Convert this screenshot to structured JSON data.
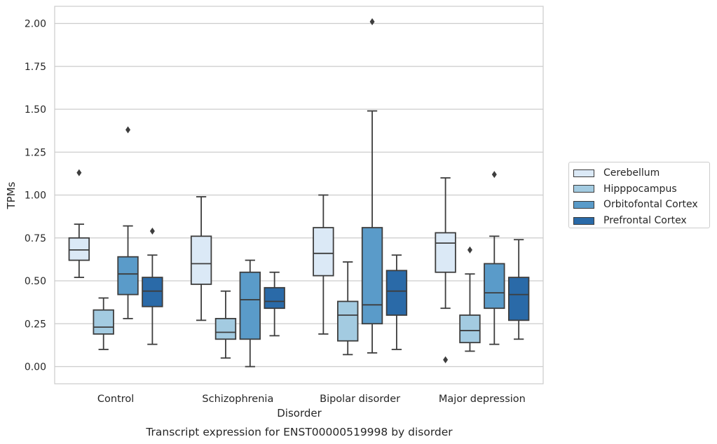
{
  "chart_data": {
    "type": "box",
    "title": "",
    "caption": "Transcript expression for ENST00000519998 by disorder",
    "xlabel": "Disorder",
    "ylabel": "TPMs",
    "ylim": [
      -0.1,
      2.1
    ],
    "yticks": [
      "0.00",
      "0.25",
      "0.50",
      "0.75",
      "1.00",
      "1.25",
      "1.50",
      "1.75",
      "2.00"
    ],
    "grid": true,
    "legend_position": "right",
    "categories": [
      "Control",
      "Schizophrenia",
      "Bipolar disorder",
      "Major depression"
    ],
    "series": [
      {
        "name": "Cerebellum",
        "color": "#dbe9f6",
        "boxes": [
          {
            "whisker_low": 0.52,
            "q1": 0.62,
            "median": 0.68,
            "q3": 0.75,
            "whisker_high": 0.83,
            "outliers": [
              1.13
            ]
          },
          {
            "whisker_low": 0.27,
            "q1": 0.48,
            "median": 0.6,
            "q3": 0.76,
            "whisker_high": 0.99,
            "outliers": []
          },
          {
            "whisker_low": 0.19,
            "q1": 0.53,
            "median": 0.66,
            "q3": 0.81,
            "whisker_high": 1.0,
            "outliers": []
          },
          {
            "whisker_low": 0.34,
            "q1": 0.55,
            "median": 0.72,
            "q3": 0.78,
            "whisker_high": 1.1,
            "outliers": [
              0.04
            ]
          }
        ]
      },
      {
        "name": "Hipppocampus",
        "color": "#a3cbe1",
        "boxes": [
          {
            "whisker_low": 0.1,
            "q1": 0.19,
            "median": 0.23,
            "q3": 0.33,
            "whisker_high": 0.4,
            "outliers": []
          },
          {
            "whisker_low": 0.05,
            "q1": 0.16,
            "median": 0.2,
            "q3": 0.28,
            "whisker_high": 0.44,
            "outliers": []
          },
          {
            "whisker_low": 0.07,
            "q1": 0.15,
            "median": 0.3,
            "q3": 0.38,
            "whisker_high": 0.61,
            "outliers": []
          },
          {
            "whisker_low": 0.09,
            "q1": 0.14,
            "median": 0.21,
            "q3": 0.3,
            "whisker_high": 0.54,
            "outliers": [
              0.68
            ]
          }
        ]
      },
      {
        "name": "Orbitofontal Cortex",
        "color": "#5a9bc9",
        "boxes": [
          {
            "whisker_low": 0.28,
            "q1": 0.42,
            "median": 0.54,
            "q3": 0.64,
            "whisker_high": 0.82,
            "outliers": [
              1.38
            ]
          },
          {
            "whisker_low": 0.0,
            "q1": 0.16,
            "median": 0.39,
            "q3": 0.55,
            "whisker_high": 0.62,
            "outliers": []
          },
          {
            "whisker_low": 0.08,
            "q1": 0.25,
            "median": 0.36,
            "q3": 0.81,
            "whisker_high": 1.49,
            "outliers": [
              2.01
            ]
          },
          {
            "whisker_low": 0.13,
            "q1": 0.34,
            "median": 0.43,
            "q3": 0.6,
            "whisker_high": 0.76,
            "outliers": [
              1.12
            ]
          }
        ]
      },
      {
        "name": "Prefrontal Cortex",
        "color": "#2a6aa8",
        "boxes": [
          {
            "whisker_low": 0.13,
            "q1": 0.35,
            "median": 0.44,
            "q3": 0.52,
            "whisker_high": 0.65,
            "outliers": [
              0.79
            ]
          },
          {
            "whisker_low": 0.18,
            "q1": 0.34,
            "median": 0.38,
            "q3": 0.46,
            "whisker_high": 0.55,
            "outliers": []
          },
          {
            "whisker_low": 0.1,
            "q1": 0.3,
            "median": 0.44,
            "q3": 0.56,
            "whisker_high": 0.65,
            "outliers": []
          },
          {
            "whisker_low": 0.16,
            "q1": 0.27,
            "median": 0.42,
            "q3": 0.52,
            "whisker_high": 0.74,
            "outliers": []
          }
        ]
      }
    ]
  }
}
